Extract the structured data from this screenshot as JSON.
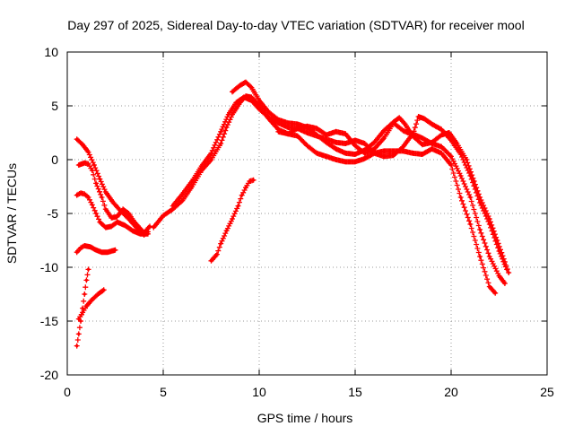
{
  "chart_data": {
    "type": "scatter",
    "title": "Day 297 of 2025, Sidereal Day-to-day VTEC variation (SDTVAR) for receiver mool",
    "xlabel": "GPS time / hours",
    "ylabel": "SDTVAR / TECUs",
    "xlim": [
      0,
      25
    ],
    "ylim": [
      -20,
      10
    ],
    "xticks": [
      0,
      5,
      10,
      15,
      20,
      25
    ],
    "yticks": [
      -20,
      -15,
      -10,
      -5,
      0,
      5,
      10
    ],
    "grid": true,
    "marker": "+",
    "color": "#ff0000",
    "series": [
      {
        "name": "arc-1",
        "points": [
          [
            0.5,
            1.9
          ],
          [
            0.8,
            1.4
          ],
          [
            1.1,
            0.7
          ],
          [
            1.4,
            -0.5
          ],
          [
            1.7,
            -1.8
          ],
          [
            2.0,
            -3.0
          ],
          [
            2.4,
            -4.0
          ],
          [
            2.8,
            -4.8
          ],
          [
            3.2,
            -5.5
          ],
          [
            3.6,
            -6.3
          ],
          [
            4.0,
            -7.0
          ],
          [
            4.2,
            -6.7
          ]
        ]
      },
      {
        "name": "arc-2",
        "points": [
          [
            0.6,
            -0.5
          ],
          [
            0.9,
            -0.3
          ],
          [
            1.1,
            -0.4
          ],
          [
            1.3,
            -1.0
          ],
          [
            1.5,
            -2.2
          ],
          [
            1.8,
            -3.5
          ],
          [
            2.0,
            -4.6
          ],
          [
            2.3,
            -5.4
          ],
          [
            2.6,
            -5.3
          ],
          [
            2.9,
            -4.6
          ],
          [
            3.2,
            -5.0
          ],
          [
            3.5,
            -5.8
          ],
          [
            3.8,
            -6.4
          ],
          [
            4.0,
            -6.8
          ],
          [
            4.3,
            -6.2
          ]
        ]
      },
      {
        "name": "arc-3",
        "points": [
          [
            0.5,
            -3.3
          ],
          [
            0.7,
            -3.1
          ],
          [
            0.9,
            -3.2
          ],
          [
            1.1,
            -3.5
          ],
          [
            1.3,
            -4.2
          ],
          [
            1.5,
            -5.0
          ],
          [
            1.7,
            -5.8
          ],
          [
            2.0,
            -6.3
          ],
          [
            2.3,
            -6.2
          ],
          [
            2.6,
            -5.8
          ],
          [
            3.0,
            -6.1
          ],
          [
            3.4,
            -6.6
          ],
          [
            3.8,
            -6.9
          ],
          [
            4.2,
            -6.9
          ]
        ]
      },
      {
        "name": "arc-4",
        "points": [
          [
            0.5,
            -8.6
          ],
          [
            0.7,
            -8.2
          ],
          [
            0.9,
            -8.0
          ],
          [
            1.2,
            -8.1
          ],
          [
            1.5,
            -8.4
          ],
          [
            1.8,
            -8.6
          ],
          [
            2.1,
            -8.6
          ],
          [
            2.5,
            -8.4
          ]
        ]
      },
      {
        "name": "arc-5",
        "points": [
          [
            0.5,
            -17.3
          ],
          [
            0.6,
            -16.2
          ],
          [
            0.7,
            -15.0
          ],
          [
            0.8,
            -13.8
          ],
          [
            0.9,
            -12.5
          ],
          [
            1.0,
            -11.2
          ],
          [
            1.1,
            -10.2
          ]
        ]
      },
      {
        "name": "arc-6",
        "points": [
          [
            0.6,
            -14.8
          ],
          [
            0.8,
            -14.2
          ],
          [
            1.0,
            -13.6
          ],
          [
            1.3,
            -13.0
          ],
          [
            1.6,
            -12.5
          ],
          [
            1.9,
            -12.1
          ]
        ]
      },
      {
        "name": "arc-7",
        "points": [
          [
            4.5,
            -6.3
          ],
          [
            5.0,
            -5.2
          ],
          [
            5.5,
            -4.6
          ],
          [
            6.0,
            -3.8
          ],
          [
            6.5,
            -2.5
          ],
          [
            7.0,
            -1.0
          ],
          [
            7.5,
            0.0
          ],
          [
            8.0,
            1.5
          ],
          [
            8.3,
            3.0
          ],
          [
            8.6,
            4.2
          ],
          [
            9.0,
            5.3
          ],
          [
            9.3,
            5.9
          ],
          [
            9.6,
            5.8
          ],
          [
            10.0,
            5.0
          ],
          [
            10.5,
            3.8
          ],
          [
            11.0,
            2.8
          ],
          [
            11.5,
            2.4
          ],
          [
            12.0,
            2.2
          ],
          [
            12.5,
            1.3
          ],
          [
            13.0,
            0.6
          ],
          [
            13.5,
            0.3
          ],
          [
            14.0,
            0.0
          ],
          [
            14.5,
            -0.2
          ],
          [
            15.0,
            -0.2
          ],
          [
            15.5,
            0.1
          ],
          [
            16.0,
            0.6
          ],
          [
            16.5,
            0.8
          ],
          [
            17.0,
            0.8
          ],
          [
            17.5,
            0.8
          ],
          [
            18.0,
            0.6
          ],
          [
            18.5,
            0.5
          ],
          [
            19.0,
            1.0
          ],
          [
            19.5,
            0.6
          ],
          [
            20.0,
            -0.5
          ],
          [
            20.5,
            -3.5
          ],
          [
            21.0,
            -6.0
          ],
          [
            21.5,
            -9.0
          ],
          [
            22.0,
            -11.8
          ],
          [
            22.3,
            -12.4
          ]
        ]
      },
      {
        "name": "arc-8",
        "points": [
          [
            5.5,
            -4.3
          ],
          [
            6.0,
            -3.2
          ],
          [
            6.5,
            -2.0
          ],
          [
            7.0,
            -0.6
          ],
          [
            7.5,
            0.6
          ],
          [
            8.0,
            2.6
          ],
          [
            8.4,
            4.2
          ],
          [
            8.8,
            5.3
          ],
          [
            9.2,
            5.8
          ],
          [
            9.6,
            5.5
          ],
          [
            10.0,
            4.7
          ],
          [
            10.5,
            3.9
          ],
          [
            11.0,
            3.4
          ],
          [
            11.5,
            3.0
          ],
          [
            12.0,
            2.9
          ],
          [
            12.5,
            2.5
          ],
          [
            13.0,
            2.2
          ],
          [
            13.5,
            1.9
          ],
          [
            14.0,
            1.6
          ],
          [
            14.5,
            1.5
          ],
          [
            15.0,
            1.8
          ],
          [
            15.5,
            1.5
          ],
          [
            16.0,
            0.6
          ],
          [
            16.5,
            0.3
          ],
          [
            17.0,
            0.4
          ],
          [
            17.5,
            1.2
          ],
          [
            18.0,
            2.4
          ],
          [
            18.5,
            2.0
          ],
          [
            19.0,
            1.5
          ],
          [
            19.5,
            1.2
          ],
          [
            20.0,
            0.3
          ],
          [
            20.5,
            -1.5
          ],
          [
            21.0,
            -3.5
          ],
          [
            21.5,
            -6.5
          ],
          [
            22.0,
            -9.0
          ],
          [
            22.5,
            -10.8
          ],
          [
            22.8,
            -11.5
          ]
        ]
      },
      {
        "name": "arc-9",
        "points": [
          [
            8.6,
            6.3
          ],
          [
            9.0,
            6.9
          ],
          [
            9.3,
            7.2
          ],
          [
            9.6,
            6.7
          ],
          [
            10.0,
            5.5
          ],
          [
            10.5,
            4.4
          ],
          [
            11.0,
            3.7
          ],
          [
            11.5,
            3.4
          ],
          [
            12.0,
            3.3
          ],
          [
            12.5,
            3.0
          ],
          [
            13.0,
            2.3
          ],
          [
            13.5,
            1.6
          ],
          [
            14.0,
            1.0
          ],
          [
            14.5,
            0.6
          ],
          [
            15.0,
            0.5
          ],
          [
            15.5,
            0.9
          ],
          [
            16.0,
            1.6
          ],
          [
            16.5,
            2.7
          ],
          [
            17.0,
            3.5
          ],
          [
            17.3,
            3.9
          ],
          [
            17.6,
            3.3
          ],
          [
            18.0,
            2.2
          ],
          [
            18.5,
            1.4
          ],
          [
            19.0,
            1.6
          ],
          [
            19.5,
            2.3
          ],
          [
            19.9,
            2.5
          ],
          [
            20.3,
            1.5
          ],
          [
            20.8,
            0.0
          ],
          [
            21.2,
            -2.0
          ],
          [
            21.5,
            -3.5
          ],
          [
            22.0,
            -5.5
          ],
          [
            22.4,
            -7.5
          ],
          [
            22.8,
            -9.5
          ],
          [
            23.0,
            -10.5
          ]
        ]
      },
      {
        "name": "arc-10",
        "points": [
          [
            11.0,
            2.6
          ],
          [
            11.5,
            2.4
          ],
          [
            12.0,
            2.9
          ],
          [
            12.5,
            3.1
          ],
          [
            13.0,
            2.9
          ],
          [
            13.5,
            2.3
          ],
          [
            14.0,
            2.6
          ],
          [
            14.5,
            2.4
          ],
          [
            15.0,
            1.3
          ],
          [
            15.5,
            0.6
          ],
          [
            16.0,
            1.0
          ],
          [
            16.5,
            2.0
          ],
          [
            17.0,
            3.4
          ],
          [
            17.5,
            2.7
          ],
          [
            18.0,
            2.3
          ],
          [
            18.3,
            4.0
          ],
          [
            18.6,
            3.8
          ],
          [
            19.0,
            3.3
          ],
          [
            19.5,
            2.8
          ],
          [
            20.0,
            1.8
          ],
          [
            20.5,
            0.5
          ],
          [
            21.0,
            -1.5
          ],
          [
            21.5,
            -4.0
          ],
          [
            22.0,
            -6.0
          ],
          [
            22.5,
            -8.5
          ],
          [
            22.9,
            -10.2
          ]
        ]
      },
      {
        "name": "arc-11",
        "points": [
          [
            7.5,
            -9.4
          ],
          [
            7.8,
            -8.8
          ],
          [
            8.0,
            -7.8
          ],
          [
            8.3,
            -6.6
          ],
          [
            8.6,
            -5.5
          ],
          [
            8.9,
            -4.3
          ],
          [
            9.1,
            -3.3
          ],
          [
            9.3,
            -2.6
          ],
          [
            9.5,
            -2.0
          ],
          [
            9.7,
            -1.9
          ]
        ]
      }
    ]
  }
}
